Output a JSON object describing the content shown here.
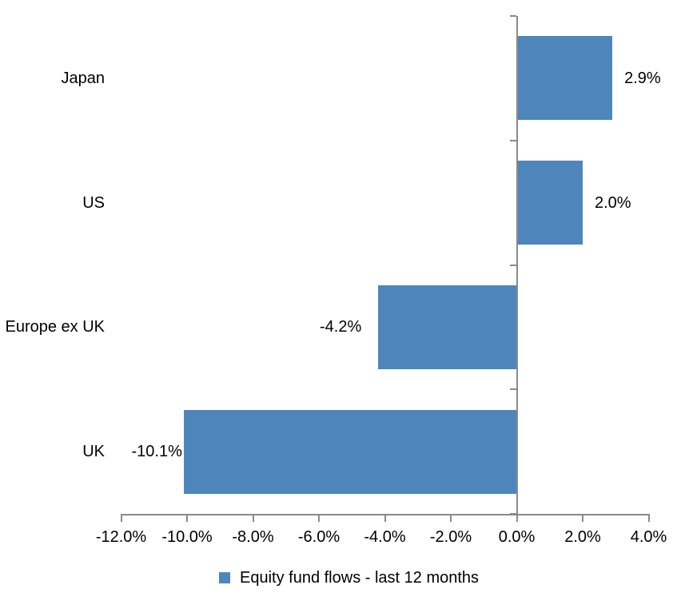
{
  "chart_data": {
    "type": "bar",
    "orientation": "horizontal",
    "title": "",
    "categories": [
      "Japan",
      "US",
      "Europe ex UK",
      "UK"
    ],
    "series": [
      {
        "name": "Equity fund flows - last 12 months",
        "values": [
          2.9,
          2.0,
          -4.2,
          -10.1
        ],
        "data_labels": [
          "2.9%",
          "2.0%",
          "-4.2%",
          "-10.1%"
        ]
      }
    ],
    "xlabel": "",
    "ylabel": "",
    "xlim": [
      -12,
      4
    ],
    "x_ticks": [
      -12,
      -10,
      -8,
      -6,
      -4,
      -2,
      0,
      2,
      4
    ],
    "x_tick_labels": [
      "-12.0%",
      "-10.0%",
      "-8.0%",
      "-6.0%",
      "-4.0%",
      "-2.0%",
      "0.0%",
      "2.0%",
      "4.0%"
    ],
    "grid": false,
    "legend_position": "bottom",
    "bar_color": "#4E86BC",
    "axis_color": "#8A8A8A",
    "text_color": "#000000",
    "background_color": "#FFFFFF"
  },
  "legend": {
    "label": "Equity fund flows - last 12 months"
  }
}
